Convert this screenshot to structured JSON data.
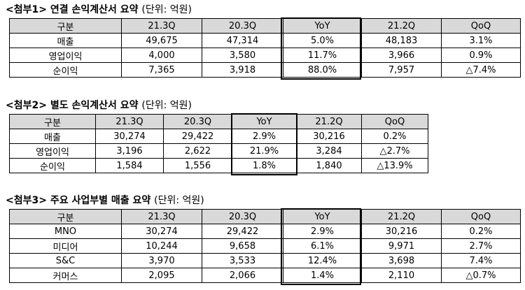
{
  "t1": {
    "caption": "<첨부1> 연결 손익계산서 요약",
    "unit": "(단위: 억원)",
    "headers": [
      "구분",
      "21.3Q",
      "20.3Q",
      "YoY",
      "21.2Q",
      "QoQ"
    ],
    "rows": [
      [
        "매출",
        "49,675",
        "47,314",
        "5.0%",
        "48,183",
        "3.1%"
      ],
      [
        "영업이익",
        "4,000",
        "3,580",
        "11.7%",
        "3,966",
        "0.9%"
      ],
      [
        "순이익",
        "7,365",
        "3,918",
        "88.0%",
        "7,957",
        "△7.4%"
      ]
    ]
  },
  "t2": {
    "caption": "<첨부2> 별도 손익계산서 요약",
    "unit": "(단위: 억원)",
    "headers": [
      "구분",
      "21.3Q",
      "20.3Q",
      "YoY",
      "21.2Q",
      "QoQ"
    ],
    "rows": [
      [
        "매출",
        "30,274",
        "29,422",
        "2.9%",
        "30,216",
        "0.2%"
      ],
      [
        "영업이익",
        "3,196",
        "2,622",
        "21.9%",
        "3,284",
        "△2.7%"
      ],
      [
        "순이익",
        "1,584",
        "1,556",
        "1.8%",
        "1,840",
        "△13.9%"
      ]
    ]
  },
  "t3": {
    "caption": "<첨부3> 주요 사업부별 매출 요약",
    "unit": "(단위: 억원)",
    "headers": [
      "구분",
      "21.3Q",
      "20.3Q",
      "YoY",
      "21.2Q",
      "QoQ"
    ],
    "rows": [
      [
        "MNO",
        "30,274",
        "29,422",
        "2.9%",
        "30,216",
        "0.2%"
      ],
      [
        "미디어",
        "10,244",
        "9,658",
        "6.1%",
        "9,971",
        "2.7%"
      ],
      [
        "S&C",
        "3,970",
        "3,533",
        "12.4%",
        "3,698",
        "7.4%"
      ],
      [
        "커머스",
        "2,095",
        "2,066",
        "1.4%",
        "2,110",
        "△0.7%"
      ]
    ]
  }
}
